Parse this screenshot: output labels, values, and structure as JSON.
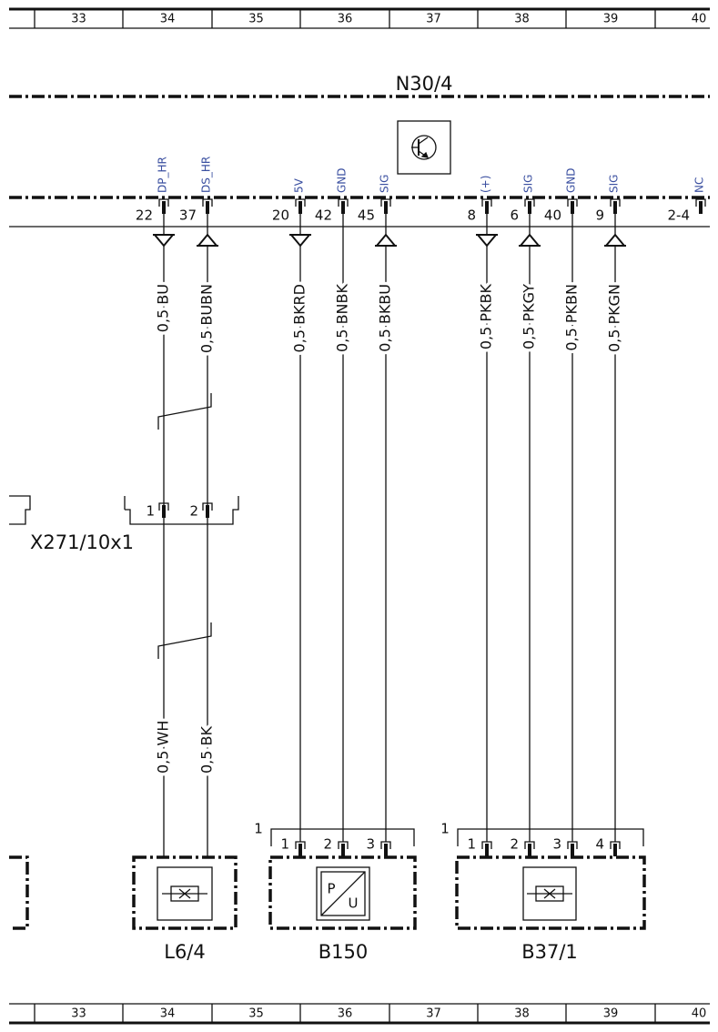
{
  "ruler_top": [
    "33",
    "34",
    "35",
    "36",
    "37",
    "38",
    "39",
    "40"
  ],
  "ruler_bottom": [
    "33",
    "34",
    "35",
    "36",
    "37",
    "38",
    "39",
    "40"
  ],
  "module": {
    "label": "N30/4"
  },
  "pins": [
    {
      "signal": "DP_HR",
      "number": "22",
      "wire": "0,5 BU"
    },
    {
      "signal": "DS_HR",
      "number": "37",
      "wire": "0,5 BUBN"
    },
    {
      "signal": "5V",
      "number": "20",
      "wire": "0,5 BKRD"
    },
    {
      "signal": "GND",
      "number": "42",
      "wire": "0,5 BNBK"
    },
    {
      "signal": "SIG",
      "number": "45",
      "wire": "0,5 BKBU"
    },
    {
      "signal": "(+)",
      "number": "8",
      "wire": "0,5 PKBK"
    },
    {
      "signal": "SIG",
      "number": "6",
      "wire": "0,5 PKGY"
    },
    {
      "signal": "GND",
      "number": "40",
      "wire": "0,5 PKBN"
    },
    {
      "signal": "SIG",
      "number": "9",
      "wire": "0,5 PKGN"
    },
    {
      "signal": "NC",
      "number": "2-4"
    }
  ],
  "connector": {
    "label": "X271/10x1",
    "pins": [
      "1",
      "2"
    ]
  },
  "lower_wires": [
    "0,5 WH",
    "0,5 BK"
  ],
  "components": [
    {
      "label": "L6/4"
    },
    {
      "label": "B150",
      "connector": "1",
      "pins": [
        "1",
        "2",
        "3"
      ],
      "icon": [
        "P",
        "U"
      ]
    },
    {
      "label": "B37/1",
      "connector": "1",
      "pins": [
        "1",
        "2",
        "3",
        "4"
      ]
    }
  ]
}
